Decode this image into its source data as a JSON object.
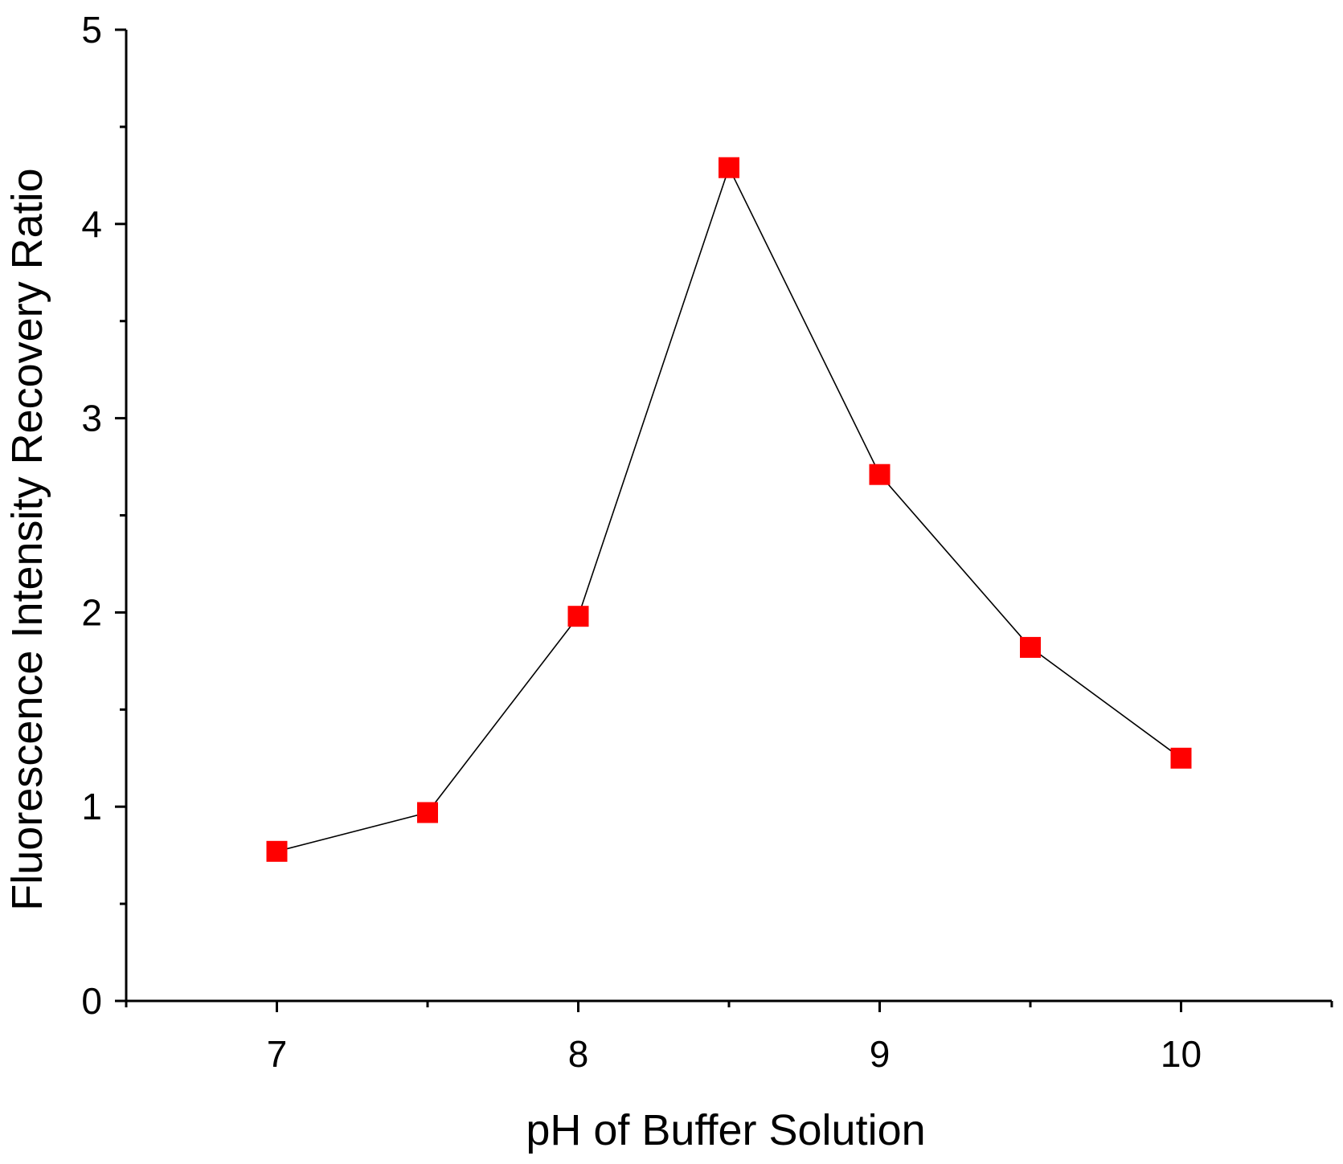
{
  "chart_data": {
    "type": "line",
    "title": "",
    "xlabel": "pH of Buffer Solution",
    "ylabel": "Fluorescence Intensity Recovery Ratio",
    "xlim": [
      6.5,
      10.5
    ],
    "ylim": [
      0,
      5
    ],
    "x_ticks": [
      7,
      8,
      9,
      10
    ],
    "x_tick_labels": [
      "7",
      "8",
      "9",
      "10"
    ],
    "x_minor_ticks": [
      6.5,
      7.5,
      8.5,
      9.5,
      10.5
    ],
    "y_ticks": [
      0,
      1,
      2,
      3,
      4,
      5
    ],
    "y_tick_labels": [
      "0",
      "1",
      "2",
      "3",
      "4",
      "5"
    ],
    "y_minor_ticks": [
      0.5,
      1.5,
      2.5,
      3.5,
      4.5
    ],
    "grid": false,
    "legend": "none",
    "series": [
      {
        "x": [
          7.0,
          7.5,
          8.0,
          8.5,
          9.0,
          9.5,
          10.0
        ],
        "values": [
          0.77,
          0.97,
          1.98,
          4.29,
          2.71,
          1.82,
          1.25
        ],
        "marker": "square",
        "marker_color": "#ff0000",
        "line_color": "#000000"
      }
    ]
  }
}
